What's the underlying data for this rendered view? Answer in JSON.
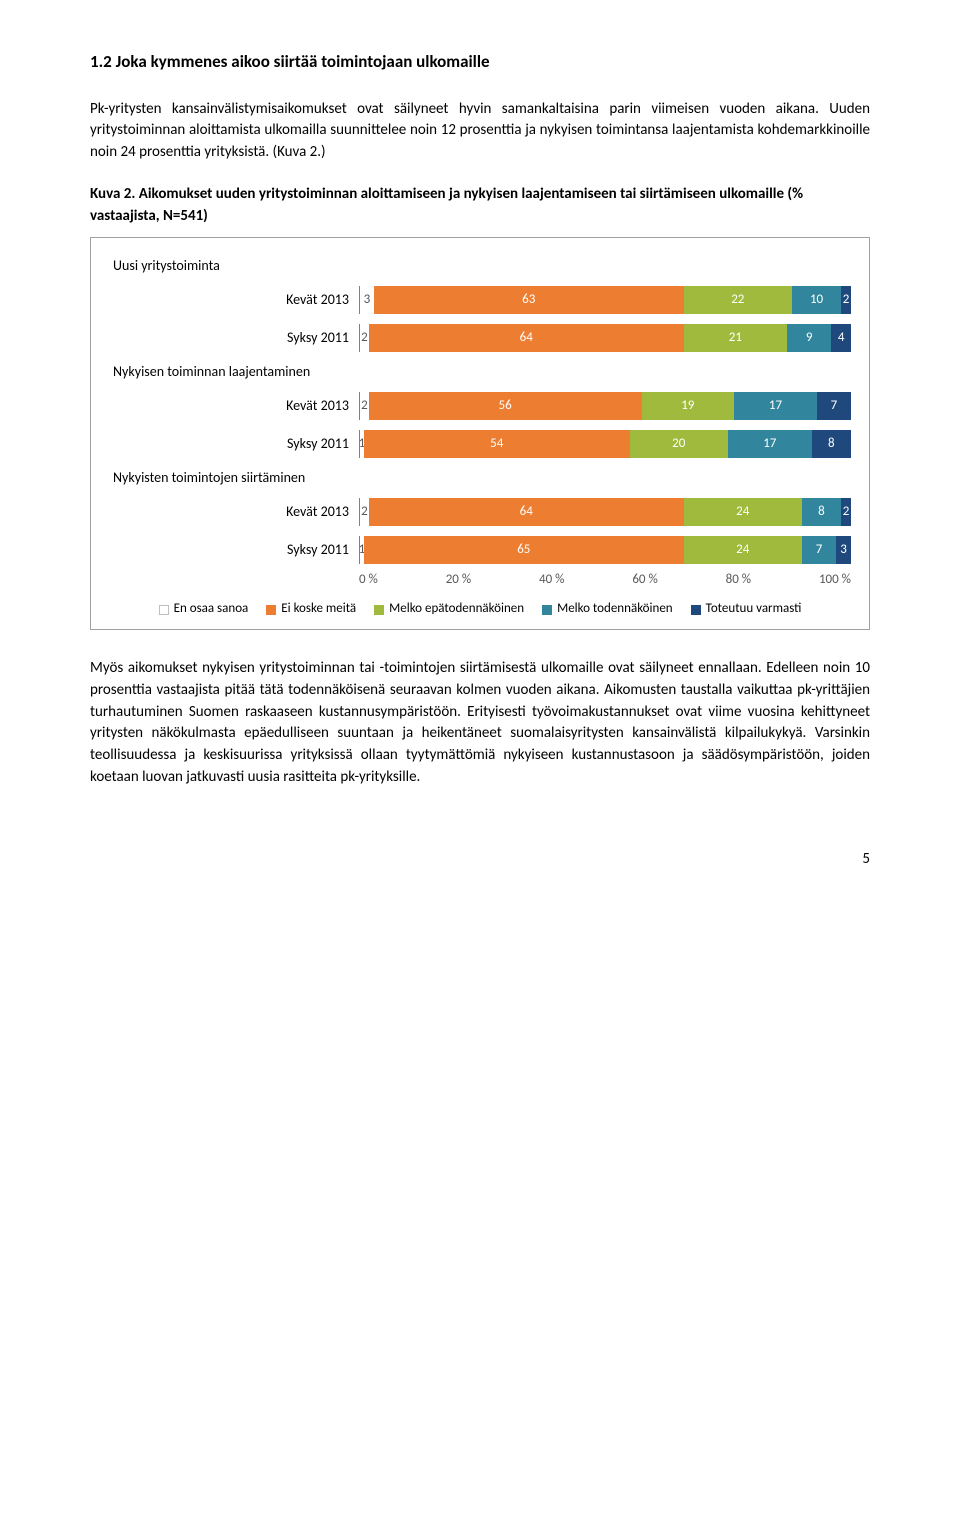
{
  "section": {
    "title": "1.2 Joka kymmenes aikoo siirtää toimintojaan ulkomaille",
    "para1": "Pk-yritysten kansainvälistymisaikomukset ovat säilyneet hyvin samankaltaisina parin viimeisen vuoden aikana. Uuden yritystoiminnan aloittamista ulkomailla suunnittelee noin 12 prosenttia ja nykyisen toimintansa laajentamista kohdemarkkinoille noin 24 prosenttia yrityksistä. (Kuva 2.)",
    "chart_caption": "Kuva 2. Aikomukset uuden yritystoiminnan aloittamiseen ja nykyisen laajentamiseen tai siirtämiseen ulkomaille (% vastaajista, N=541)",
    "para2": "Myös aikomukset nykyisen yritystoiminnan tai -toimintojen siirtämisestä ulkomaille ovat säilyneet ennallaan. Edelleen noin 10 prosenttia vastaajista pitää tätä todennäköisenä seuraavan kolmen vuoden aikana. Aikomusten taustalla vaikuttaa pk-yrittäjien turhautuminen Suomen raskaaseen kustannusympäristöön. Erityisesti työvoimakustannukset ovat viime vuosina kehittyneet yritysten näkökulmasta epäedulliseen suuntaan ja heikentäneet suomalaisyritysten kansainvälistä kilpailukykyä. Varsinkin teollisuudessa ja keskisuurissa yrityksissä ollaan tyytymättömiä nykyiseen kustannustasoon ja säädösympäristöön, joiden koetaan luovan jatkuvasti uusia rasitteita pk-yrityksille."
  },
  "chart": {
    "type": "stacked-bar-horizontal",
    "colors": {
      "en_osaa": "#d9d9d9",
      "ei_koske": "#ed7d31",
      "melko_epa": "#a5a5a5",
      "melko_tod": "#2f5597",
      "toteutuu": "#70ad47",
      "c0": "#ffffff",
      "c1": "#ed7d31",
      "c2": "#9fba3c",
      "c3": "#31859c",
      "c4": "#1f497d"
    },
    "groups": [
      {
        "header": "Uusi yritystoiminta",
        "rows": [
          {
            "label": "Kevät 2013",
            "vals": [
              3,
              63,
              22,
              10,
              2
            ]
          },
          {
            "label": "Syksy 2011",
            "vals": [
              2,
              64,
              21,
              9,
              4
            ]
          }
        ]
      },
      {
        "header": "Nykyisen toiminnan laajentaminen",
        "rows": [
          {
            "label": "Kevät 2013",
            "vals": [
              2,
              56,
              19,
              17,
              7
            ]
          },
          {
            "label": "Syksy 2011",
            "vals": [
              1,
              54,
              20,
              17,
              8
            ]
          }
        ]
      },
      {
        "header": "Nykyisten toimintojen siirtäminen",
        "rows": [
          {
            "label": "Kevät 2013",
            "vals": [
              2,
              64,
              24,
              8,
              2
            ]
          },
          {
            "label": "Syksy 2011",
            "vals": [
              1,
              65,
              24,
              7,
              3
            ]
          }
        ]
      }
    ],
    "axis_ticks": [
      "0 %",
      "20 %",
      "40 %",
      "60 %",
      "80 %",
      "100 %"
    ],
    "legend": [
      {
        "label": "En osaa sanoa",
        "color": "#ffffff",
        "border": "#bfbfbf"
      },
      {
        "label": "Ei koske meitä",
        "color": "#ed7d31"
      },
      {
        "label": "Melko epätodennäköinen",
        "color": "#9fba3c"
      },
      {
        "label": "Melko todennäköinen",
        "color": "#31859c"
      },
      {
        "label": "Toteutuu varmasti",
        "color": "#1f497d"
      }
    ]
  },
  "page_number": "5"
}
